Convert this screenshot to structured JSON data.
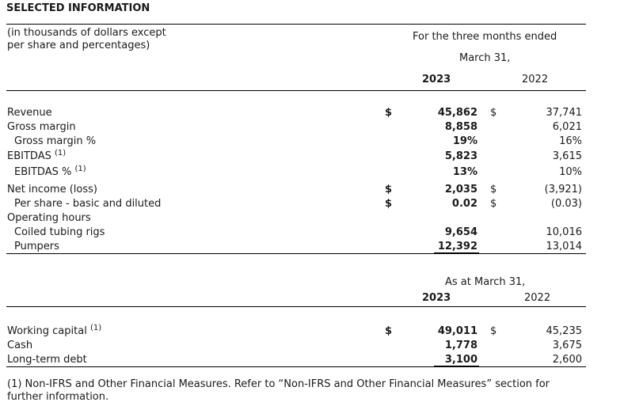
{
  "title": "SELECTED INFORMATION",
  "units_note": [
    "(in thousands of dollars except",
    "per share and percentages)"
  ],
  "section1": {
    "header_line1": "For the three months ended",
    "header_line2": "March 31,",
    "col_2023": "2023",
    "col_2022": "2022",
    "rows": [
      {
        "label": "Revenue",
        "sup": "",
        "sym": "$",
        "v2023": "45,862",
        "mid": "$",
        "v2022": "37,741"
      },
      {
        "label": "Gross margin",
        "sup": "",
        "sym": "",
        "v2023": "8,858",
        "mid": "",
        "v2022": "6,021"
      },
      {
        "label": "Gross margin %",
        "sup": "",
        "sym": "",
        "v2023": "19%",
        "mid": "",
        "v2022": "16%"
      },
      {
        "label": "EBITDAS",
        "sup": "(1)",
        "sym": "",
        "v2023": "5,823",
        "mid": "",
        "v2022": "3,615"
      },
      {
        "label": "EBITDAS %",
        "sup": "(1)",
        "sym": "",
        "v2023": "13%",
        "mid": "",
        "v2022": "10%"
      },
      {
        "label": "Net income (loss)",
        "sup": "",
        "sym": "$",
        "v2023": "2,035",
        "mid": "$",
        "v2022": "(3,921)"
      },
      {
        "label": "Per share - basic and diluted",
        "sup": "",
        "sym": "$",
        "v2023": "0.02",
        "mid": "$",
        "v2022": "(0.03)"
      },
      {
        "label": "Operating hours",
        "sup": "",
        "sym": "",
        "v2023": "",
        "mid": "",
        "v2022": ""
      },
      {
        "label": "Coiled tubing rigs",
        "sup": "",
        "sym": "",
        "v2023": "9,654",
        "mid": "",
        "v2022": "10,016"
      },
      {
        "label": "Pumpers",
        "sup": "",
        "sym": "",
        "v2023": "12,392",
        "mid": "",
        "v2022": "13,014"
      }
    ]
  },
  "section2": {
    "header": "As at March 31,",
    "col_2023": "2023",
    "col_2022": "2022",
    "rows": [
      {
        "label": "Working capital",
        "sup": "(1)",
        "sym": "$",
        "v2023": "49,011",
        "mid": "$",
        "v2022": "45,235"
      },
      {
        "label": "Cash",
        "sup": "",
        "sym": "",
        "v2023": "1,778",
        "mid": "",
        "v2022": "3,675"
      },
      {
        "label": "Long-term debt",
        "sup": "",
        "sym": "",
        "v2023": "3,100",
        "mid": "",
        "v2022": "2,600"
      }
    ]
  },
  "footnote": [
    "(1) Non-IFRS and Other Financial Measures. Refer to “Non-IFRS and Other Financial Measures” section for",
    "further information."
  ]
}
